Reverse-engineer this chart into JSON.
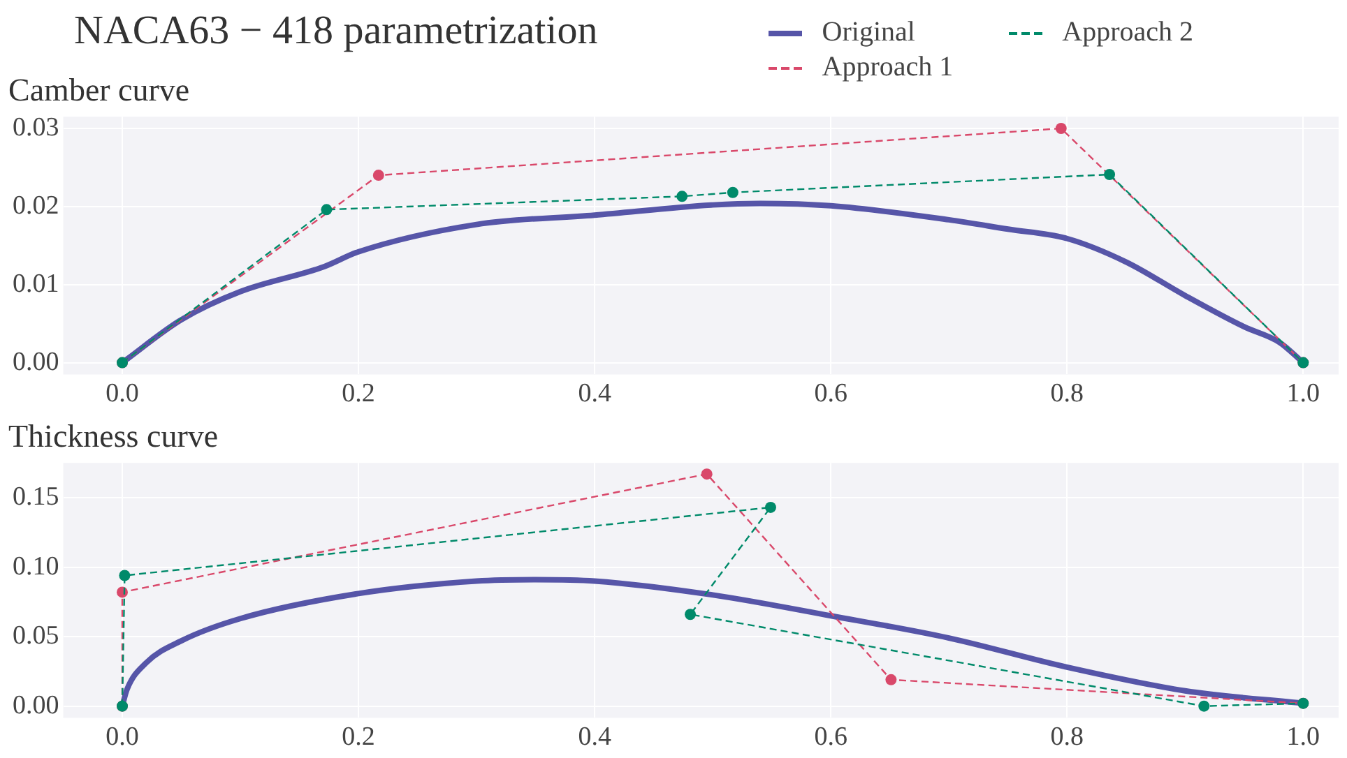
{
  "chart_data": [
    {
      "type": "line",
      "title": "NACA63 − 418 parametrization",
      "subtitle": "Camber curve",
      "legend": "top right",
      "grid": true,
      "xlim": [
        -0.05,
        1.03
      ],
      "xticks": [
        {
          "value": 0,
          "label": "0.0"
        },
        {
          "value": 0.2,
          "label": "0.2"
        },
        {
          "value": 0.4,
          "label": "0.4"
        },
        {
          "value": 0.6,
          "label": "0.6"
        },
        {
          "value": 0.8,
          "label": "0.8"
        },
        {
          "value": 1,
          "label": "1.0"
        }
      ],
      "ylim": [
        -0.0015,
        0.0315
      ],
      "yticks": [
        {
          "value": 0,
          "label": "0.00"
        },
        {
          "value": 0.01,
          "label": "0.01"
        },
        {
          "value": 0.02,
          "label": "0.02"
        },
        {
          "value": 0.03,
          "label": "0.03"
        }
      ],
      "series": [
        {
          "name": "Original",
          "color": "#5655a8",
          "marker": "none",
          "line_style": "solid",
          "x": [
            0,
            0.05,
            0.1,
            0.171,
            0.2,
            0.3,
            0.4,
            0.5,
            0.54,
            0.6,
            0.7,
            0.75,
            0.8,
            0.85,
            0.9,
            0.95,
            0.98,
            1
          ],
          "values": [
            0,
            0.0055,
            0.0091,
            0.0123,
            0.0142,
            0.0177,
            0.0189,
            0.0202,
            0.0204,
            0.0201,
            0.0183,
            0.0171,
            0.0159,
            0.0129,
            0.0086,
            0.0046,
            0.0026,
            0
          ]
        },
        {
          "name": "Approach 1",
          "color": "#d9486a",
          "marker": "circle",
          "line_style": "dashed",
          "x": [
            0,
            0.217,
            0.795,
            1
          ],
          "values": [
            0,
            0.024,
            0.03,
            0
          ]
        },
        {
          "name": "Approach 2",
          "color": "#008a6a",
          "marker": "circle",
          "line_style": "dashed",
          "x": [
            0,
            0.173,
            0.474,
            0.517,
            0.836,
            1
          ],
          "values": [
            0,
            0.0196,
            0.0213,
            0.0218,
            0.0241,
            0
          ]
        }
      ]
    },
    {
      "type": "line",
      "title": "Thickness curve",
      "grid": true,
      "xlim": [
        -0.05,
        1.03
      ],
      "xticks": [
        {
          "value": 0,
          "label": "0.0"
        },
        {
          "value": 0.2,
          "label": "0.2"
        },
        {
          "value": 0.4,
          "label": "0.4"
        },
        {
          "value": 0.6,
          "label": "0.6"
        },
        {
          "value": 0.8,
          "label": "0.8"
        },
        {
          "value": 1,
          "label": "1.0"
        }
      ],
      "ylim": [
        -0.0084,
        0.175
      ],
      "yticks": [
        {
          "value": 0,
          "label": "0.00"
        },
        {
          "value": 0.05,
          "label": "0.05"
        },
        {
          "value": 0.1,
          "label": "0.10"
        },
        {
          "value": 0.15,
          "label": "0.15"
        }
      ],
      "series": [
        {
          "color": "#5655a8",
          "marker": "none",
          "line_style": "solid",
          "x": [
            0,
            0.004,
            0.02,
            0.05,
            0.1,
            0.2,
            0.3,
            0.35,
            0.4,
            0.5,
            0.6,
            0.7,
            0.8,
            0.9,
            1
          ],
          "values": [
            0,
            0.012,
            0.031,
            0.047,
            0.063,
            0.081,
            0.09,
            0.091,
            0.09,
            0.08,
            0.065,
            0.049,
            0.028,
            0.011,
            0.002
          ]
        },
        {
          "color": "#d9486a",
          "marker": "circle",
          "line_style": "dashed",
          "x": [
            0,
            0,
            0.495,
            0.651,
            1
          ],
          "values": [
            0,
            0.082,
            0.167,
            0.019,
            0.002
          ]
        },
        {
          "color": "#008a6a",
          "marker": "circle",
          "line_style": "dashed",
          "x": [
            0,
            0.002,
            0.549,
            0.481,
            0.916,
            1
          ],
          "values": [
            0,
            0.094,
            0.143,
            0.066,
            0,
            0.002
          ]
        }
      ]
    }
  ]
}
